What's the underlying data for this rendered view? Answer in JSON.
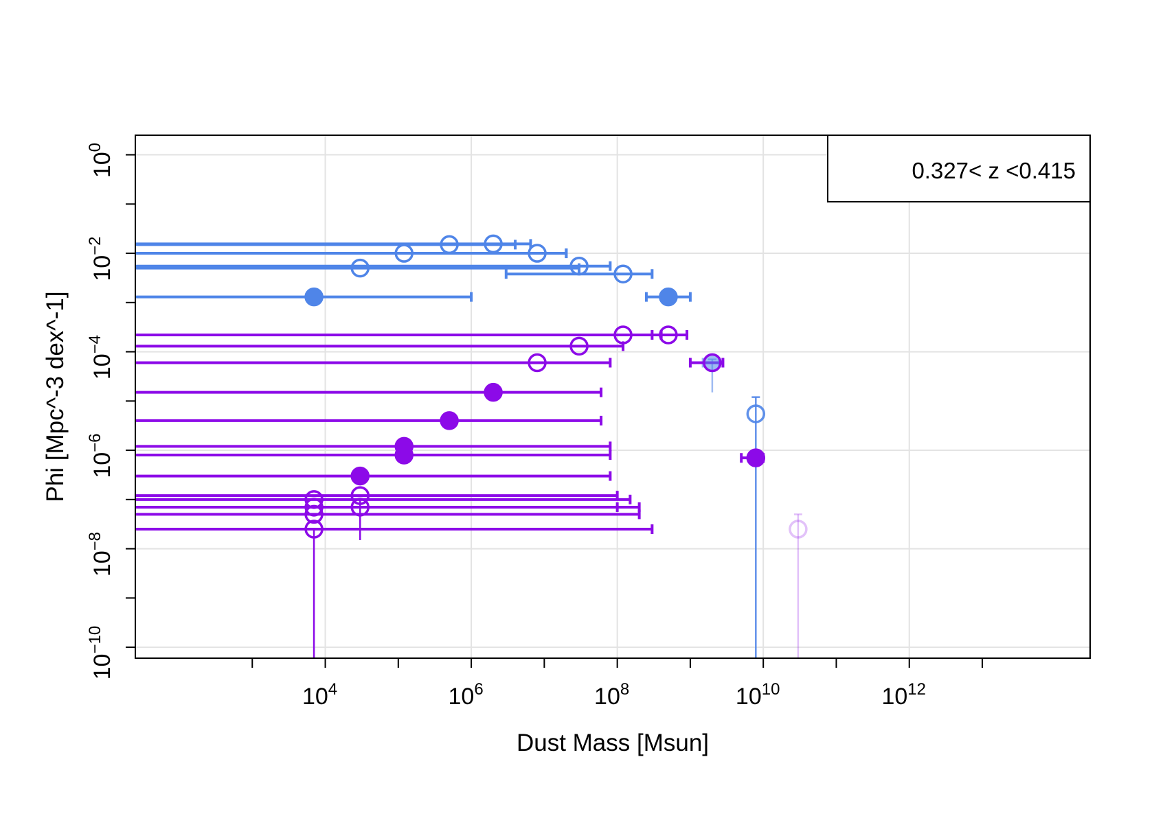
{
  "chart_data": {
    "type": "scatter",
    "title": "",
    "xlabel": "Dust Mass [Msun]",
    "ylabel": "Phi [Mpc^-3 dex^-1]",
    "x_scale": "log",
    "y_scale": "log",
    "xlim": [
      25,
      300000000000000.0
    ],
    "ylim": [
      6e-11,
      2.5
    ],
    "x_tick_labels": [
      {
        "base": "10",
        "exp": "4",
        "value": 10000.0
      },
      {
        "base": "10",
        "exp": "6",
        "value": 1000000.0
      },
      {
        "base": "10",
        "exp": "8",
        "value": 100000000.0
      },
      {
        "base": "10",
        "exp": "10",
        "value": 10000000000.0
      },
      {
        "base": "10",
        "exp": "12",
        "value": 1000000000000.0
      }
    ],
    "x_minor_ticks": [
      1000.0,
      100000.0,
      10000000.0,
      1000000000.0,
      100000000000.0,
      10000000000000.0
    ],
    "y_tick_labels": [
      {
        "base": "10",
        "exp": "0",
        "value": 1
      },
      {
        "base": "10",
        "exp": "−2",
        "value": 0.01
      },
      {
        "base": "10",
        "exp": "−4",
        "value": 0.0001
      },
      {
        "base": "10",
        "exp": "−6",
        "value": 1e-06
      },
      {
        "base": "10",
        "exp": "−8",
        "value": 1e-08
      },
      {
        "base": "10",
        "exp": "−10",
        "value": 1e-10
      }
    ],
    "y_minor_ticks": [
      0.1,
      0.001,
      1e-05,
      1e-07,
      1e-09
    ],
    "grid": true,
    "legend": {
      "text": "0.327< z <0.415",
      "placement": "top-right"
    },
    "colors": {
      "blue": "#4f85e8",
      "purple": "#8c0ae8",
      "grid": "#e3e3e3",
      "axis": "#000000"
    },
    "series": [
      {
        "color": "blue",
        "points": [
          {
            "x": 7000.0,
            "y": 0.0013,
            "xerr": [
              25,
              1000000.0
            ],
            "filled": true,
            "alpha": 1
          },
          {
            "x": 30000.0,
            "y": 0.005,
            "xerr": [
              25,
              30000000.0
            ],
            "filled": false,
            "alpha": 1
          },
          {
            "x": 120000.0,
            "y": 0.01,
            "xerr": [
              25,
              20000000.0
            ],
            "filled": false,
            "alpha": 1
          },
          {
            "x": 500000.0,
            "y": 0.015,
            "xerr": [
              25,
              4000000.0
            ],
            "filled": false,
            "alpha": 1
          },
          {
            "x": 2000000.0,
            "y": 0.0155,
            "xerr": [
              25,
              6500000.0
            ],
            "filled": false,
            "alpha": 1
          },
          {
            "x": 8000000.0,
            "y": 0.01,
            "xerr": [
              25,
              20000000.0
            ],
            "filled": false,
            "alpha": 1
          },
          {
            "x": 30000000.0,
            "y": 0.0055,
            "xerr": [
              25,
              80000000.0
            ],
            "filled": false,
            "alpha": 1
          },
          {
            "x": 120000000.0,
            "y": 0.0038,
            "xerr": [
              3000000.0,
              300000000.0
            ],
            "filled": false,
            "alpha": 1
          },
          {
            "x": 500000000.0,
            "y": 0.0013,
            "xerr": [
              250000000.0,
              1000000000.0
            ],
            "filled": true,
            "alpha": 1
          },
          {
            "x": 2000000000.0,
            "y": 6e-05,
            "xerr": [
              1500000000.0,
              2500000000.0
            ],
            "filled": true,
            "alpha": 0.55,
            "yerr": [
              1.5e-05,
              7e-05
            ]
          },
          {
            "x": 7900000000.0,
            "y": 5.5e-06,
            "xerr": [
              7900000000.0,
              7900000000.0
            ],
            "filled": false,
            "alpha": 0.9,
            "yerr": [
              6e-11,
              1.2e-05
            ]
          }
        ]
      },
      {
        "color": "purple",
        "points": [
          {
            "x": 7000.0,
            "y": 2.5e-08,
            "xerr": [
              25,
              300000000.0
            ],
            "filled": false,
            "alpha": 1,
            "yerr": [
              6e-11,
              2.5e-08
            ]
          },
          {
            "x": 7000.0,
            "y": 5e-08,
            "xerr": [
              25,
              200000000.0
            ],
            "filled": false,
            "alpha": 1
          },
          {
            "x": 7000.0,
            "y": 7e-08,
            "xerr": [
              25,
              200000000.0
            ],
            "filled": false,
            "alpha": 1
          },
          {
            "x": 7000.0,
            "y": 1e-07,
            "xerr": [
              25,
              150000000.0
            ],
            "filled": false,
            "alpha": 1
          },
          {
            "x": 30000.0,
            "y": 7e-08,
            "xerr": [
              25,
              100000000.0
            ],
            "filled": false,
            "alpha": 1,
            "yerr": [
              1.5e-08,
              1e-07
            ]
          },
          {
            "x": 30000.0,
            "y": 1.2e-07,
            "xerr": [
              25,
              100000000.0
            ],
            "filled": false,
            "alpha": 1
          },
          {
            "x": 30000.0,
            "y": 3e-07,
            "xerr": [
              25,
              80000000.0
            ],
            "filled": true,
            "alpha": 1
          },
          {
            "x": 120000.0,
            "y": 8e-07,
            "xerr": [
              25,
              80000000.0
            ],
            "filled": true,
            "alpha": 1
          },
          {
            "x": 120000.0,
            "y": 1.2e-06,
            "xerr": [
              25,
              80000000.0
            ],
            "filled": true,
            "alpha": 1
          },
          {
            "x": 500000.0,
            "y": 4e-06,
            "xerr": [
              25,
              60000000.0
            ],
            "filled": true,
            "alpha": 1
          },
          {
            "x": 2000000.0,
            "y": 1.5e-05,
            "xerr": [
              25,
              60000000.0
            ],
            "filled": true,
            "alpha": 1
          },
          {
            "x": 8000000.0,
            "y": 6e-05,
            "xerr": [
              25,
              80000000.0
            ],
            "filled": false,
            "alpha": 1
          },
          {
            "x": 30000000.0,
            "y": 0.00013,
            "xerr": [
              25,
              120000000.0
            ],
            "filled": false,
            "alpha": 1
          },
          {
            "x": 120000000.0,
            "y": 0.00022,
            "xerr": [
              25,
              400000000.0
            ],
            "filled": false,
            "alpha": 1
          },
          {
            "x": 500000000.0,
            "y": 0.00022,
            "xerr": [
              300000000.0,
              900000000.0
            ],
            "filled": false,
            "alpha": 1
          },
          {
            "x": 2000000000.0,
            "y": 6e-05,
            "xerr": [
              1000000000.0,
              2800000000.0
            ],
            "filled": false,
            "alpha": 1
          },
          {
            "x": 7900000000.0,
            "y": 7e-07,
            "xerr": [
              5000000000.0,
              10000000000.0
            ],
            "filled": true,
            "alpha": 1
          },
          {
            "x": 30000000000.0,
            "y": 2.5e-08,
            "xerr": [
              30000000000.0,
              30000000000.0
            ],
            "filled": false,
            "alpha": 0.25,
            "yerr": [
              6e-11,
              5e-08
            ]
          }
        ]
      }
    ]
  }
}
